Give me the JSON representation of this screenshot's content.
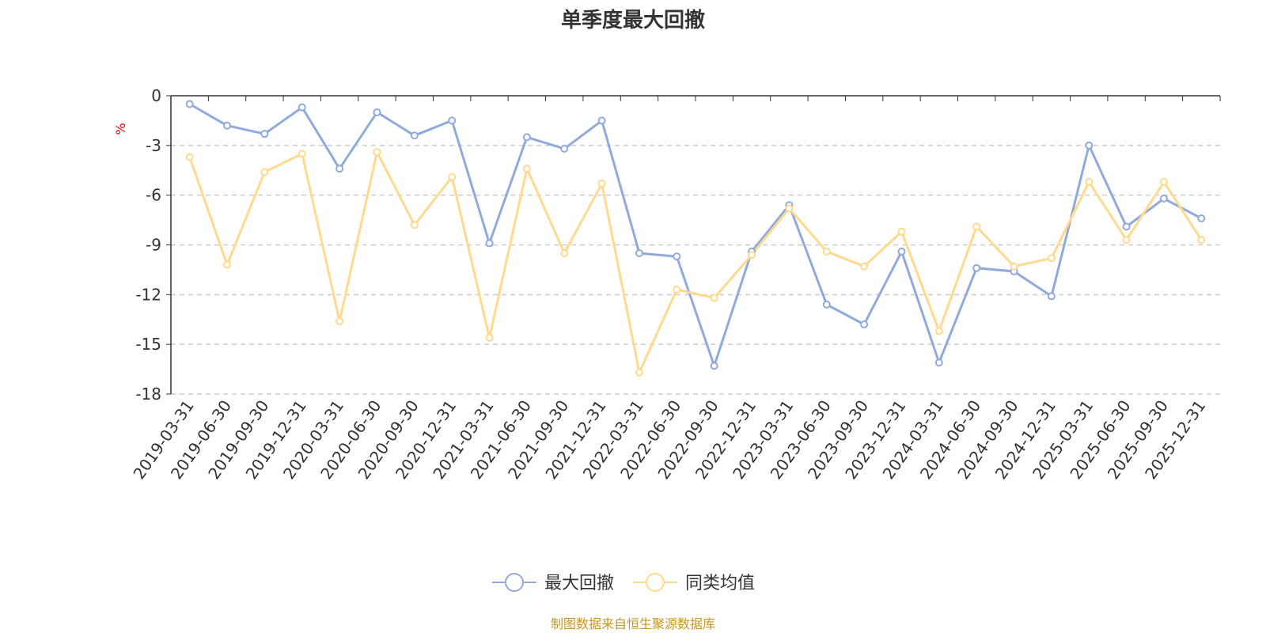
{
  "chart_data": {
    "type": "line",
    "title": "单季度最大回撤",
    "ylabel": "%",
    "ylim": [
      -18,
      0
    ],
    "yticks": [
      0,
      -3,
      -6,
      -9,
      -12,
      -15,
      -18
    ],
    "categories": [
      "2019-03-31",
      "2019-06-30",
      "2019-09-30",
      "2019-12-31",
      "2020-03-31",
      "2020-06-30",
      "2020-09-30",
      "2020-12-31",
      "2021-03-31",
      "2021-06-30",
      "2021-09-30",
      "2021-12-31",
      "2022-03-31",
      "2022-06-30",
      "2022-09-30",
      "2022-12-31",
      "2023-03-31",
      "2023-06-30",
      "2023-09-30",
      "2023-12-31",
      "2024-03-31",
      "2024-06-30",
      "2024-09-30",
      "2024-12-31",
      "2025-03-31",
      "2025-06-30",
      "2025-09-30",
      "2025-12-31"
    ],
    "series": [
      {
        "name": "最大回撤",
        "color": "#8faadc",
        "values": [
          -0.5,
          -1.8,
          -2.3,
          -0.7,
          -4.4,
          -1.0,
          -2.4,
          -1.5,
          -8.9,
          -2.5,
          -3.2,
          -1.5,
          -9.5,
          -9.7,
          -16.3,
          -9.4,
          -6.6,
          -12.6,
          -13.8,
          -9.4,
          -16.1,
          -10.4,
          -10.6,
          -12.1,
          -3.0,
          -7.9,
          -6.2,
          -7.4
        ]
      },
      {
        "name": "同类均值",
        "color": "#ffd98e",
        "values": [
          -3.7,
          -10.2,
          -4.6,
          -3.5,
          -13.6,
          -3.4,
          -7.8,
          -4.9,
          -14.6,
          -4.4,
          -9.5,
          -5.3,
          -16.7,
          -11.7,
          -12.2,
          -9.6,
          -6.8,
          -9.4,
          -10.3,
          -8.2,
          -14.2,
          -7.9,
          -10.3,
          -9.8,
          -5.2,
          -8.7,
          -5.2,
          -8.7
        ]
      }
    ],
    "source": "制图数据来自恒生聚源数据库"
  }
}
